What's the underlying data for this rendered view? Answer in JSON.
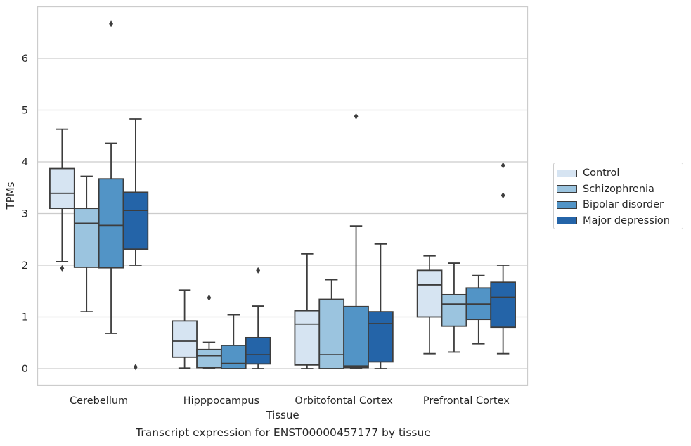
{
  "chart_data": {
    "type": "boxplot",
    "title": "",
    "xlabel": "Tissue",
    "ylabel": "TPMs",
    "caption": "Transcript expression for ENST00000457177 by tissue",
    "ylim": [
      -0.32,
      7.0
    ],
    "yticks": [
      0,
      1,
      2,
      3,
      4,
      5,
      6
    ],
    "grid": "horizontal",
    "legend_position": "right",
    "categories": [
      "Cerebellum",
      "Hipppocampus",
      "Orbitofontal Cortex",
      "Prefrontal Cortex"
    ],
    "series": [
      {
        "name": "Control",
        "color": "#d6e4f2",
        "boxes": [
          {
            "whisker_low": 2.07,
            "q1": 3.1,
            "median": 3.39,
            "q3": 3.87,
            "whisker_high": 4.63,
            "outliers": [
              1.94
            ]
          },
          {
            "whisker_low": 0.01,
            "q1": 0.22,
            "median": 0.53,
            "q3": 0.92,
            "whisker_high": 1.52,
            "outliers": []
          },
          {
            "whisker_low": 0.0,
            "q1": 0.07,
            "median": 0.86,
            "q3": 1.12,
            "whisker_high": 2.22,
            "outliers": []
          },
          {
            "whisker_low": 0.29,
            "q1": 1.0,
            "median": 1.62,
            "q3": 1.9,
            "whisker_high": 2.18,
            "outliers": []
          }
        ]
      },
      {
        "name": "Schizophrenia",
        "color": "#9bc4df",
        "boxes": [
          {
            "whisker_low": 1.1,
            "q1": 1.96,
            "median": 2.81,
            "q3": 3.1,
            "whisker_high": 3.72,
            "outliers": []
          },
          {
            "whisker_low": 0.0,
            "q1": 0.02,
            "median": 0.25,
            "q3": 0.37,
            "whisker_high": 0.51,
            "outliers": [
              1.37
            ]
          },
          {
            "whisker_low": 0.0,
            "q1": 0.0,
            "median": 0.27,
            "q3": 1.34,
            "whisker_high": 1.72,
            "outliers": []
          },
          {
            "whisker_low": 0.32,
            "q1": 0.82,
            "median": 1.25,
            "q3": 1.43,
            "whisker_high": 2.04,
            "outliers": []
          }
        ]
      },
      {
        "name": "Bipolar disorder",
        "color": "#5294c6",
        "boxes": [
          {
            "whisker_low": 0.68,
            "q1": 1.95,
            "median": 2.77,
            "q3": 3.67,
            "whisker_high": 4.36,
            "outliers": [
              6.67
            ]
          },
          {
            "whisker_low": 0.0,
            "q1": 0.0,
            "median": 0.1,
            "q3": 0.45,
            "whisker_high": 1.04,
            "outliers": []
          },
          {
            "whisker_low": 0.0,
            "q1": 0.02,
            "median": 0.05,
            "q3": 1.2,
            "whisker_high": 2.76,
            "outliers": [
              4.88
            ]
          },
          {
            "whisker_low": 0.48,
            "q1": 0.95,
            "median": 1.25,
            "q3": 1.56,
            "whisker_high": 1.8,
            "outliers": []
          }
        ]
      },
      {
        "name": "Major depression",
        "color": "#2464a8",
        "boxes": [
          {
            "whisker_low": 2.0,
            "q1": 2.31,
            "median": 3.06,
            "q3": 3.41,
            "whisker_high": 4.83,
            "outliers": [
              0.03
            ]
          },
          {
            "whisker_low": 0.0,
            "q1": 0.09,
            "median": 0.27,
            "q3": 0.6,
            "whisker_high": 1.21,
            "outliers": [
              1.9
            ]
          },
          {
            "whisker_low": 0.0,
            "q1": 0.13,
            "median": 0.87,
            "q3": 1.1,
            "whisker_high": 2.41,
            "outliers": []
          },
          {
            "whisker_low": 0.29,
            "q1": 0.8,
            "median": 1.38,
            "q3": 1.67,
            "whisker_high": 2.0,
            "outliers": [
              3.93,
              3.35
            ]
          }
        ]
      }
    ]
  }
}
